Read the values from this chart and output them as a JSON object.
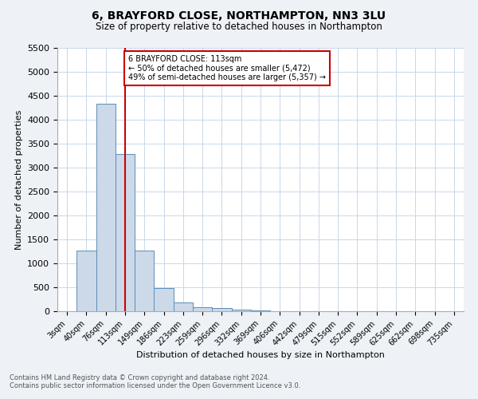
{
  "title": "6, BRAYFORD CLOSE, NORTHAMPTON, NN3 3LU",
  "subtitle": "Size of property relative to detached houses in Northampton",
  "xlabel": "Distribution of detached houses by size in Northampton",
  "ylabel": "Number of detached properties",
  "footnote1": "Contains HM Land Registry data © Crown copyright and database right 2024.",
  "footnote2": "Contains public sector information licensed under the Open Government Licence v3.0.",
  "bar_labels": [
    "3sqm",
    "40sqm",
    "76sqm",
    "113sqm",
    "149sqm",
    "186sqm",
    "223sqm",
    "259sqm",
    "296sqm",
    "332sqm",
    "369sqm",
    "406sqm",
    "442sqm",
    "479sqm",
    "515sqm",
    "552sqm",
    "589sqm",
    "625sqm",
    "662sqm",
    "698sqm",
    "735sqm"
  ],
  "bar_values": [
    0,
    1260,
    4330,
    3290,
    1275,
    485,
    190,
    90,
    65,
    35,
    10,
    0,
    0,
    0,
    0,
    0,
    0,
    0,
    0,
    0,
    0
  ],
  "bar_color": "#ccd9e8",
  "bar_edge_color": "#5b8db8",
  "vline_x_idx": 3,
  "vline_color": "#cc0000",
  "ylim": [
    0,
    5500
  ],
  "yticks": [
    0,
    500,
    1000,
    1500,
    2000,
    2500,
    3000,
    3500,
    4000,
    4500,
    5000,
    5500
  ],
  "annotation_title": "6 BRAYFORD CLOSE: 113sqm",
  "annotation_line1": "← 50% of detached houses are smaller (5,472)",
  "annotation_line2": "49% of semi-detached houses are larger (5,357) →",
  "annotation_box_color": "#cc0000",
  "bg_color": "#eef2f7",
  "plot_bg_color": "#ffffff",
  "grid_color": "#c8d8e8"
}
